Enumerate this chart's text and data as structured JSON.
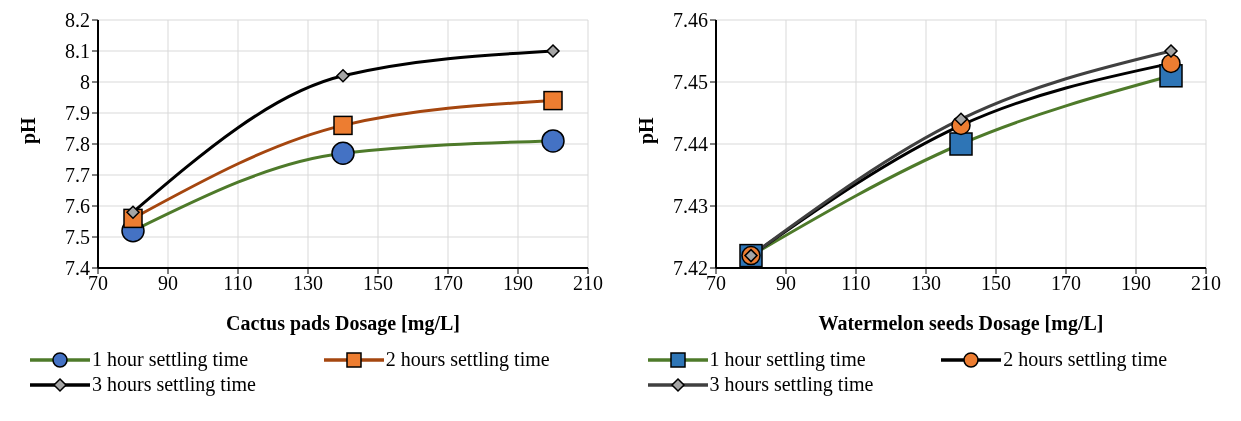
{
  "chart_data": [
    {
      "type": "line",
      "xlabel": "Cactus pads Dosage [mg/L]",
      "ylabel": "pH",
      "x": [
        80,
        140,
        200
      ],
      "xlim": [
        70,
        210
      ],
      "xticks": [
        70,
        90,
        110,
        130,
        150,
        170,
        190,
        210
      ],
      "ylim": [
        7.4,
        8.2
      ],
      "yticks": [
        7.4,
        7.5,
        7.6,
        7.7,
        7.8,
        7.9,
        8,
        8.1,
        8.2
      ],
      "grid": true,
      "legend": "bottom",
      "series": [
        {
          "name": "1 hour settling time",
          "color": "#4e7a2a",
          "colors": [
            "#4472c4",
            "#4472c4",
            "#4472c4"
          ],
          "marker": "circle",
          "values": [
            7.52,
            7.77,
            7.81
          ]
        },
        {
          "name": "2 hours settling time",
          "color": "#a5460f",
          "colors": [
            "#ed7d31",
            "#ed7d31",
            "#ed7d31"
          ],
          "marker": "square",
          "values": [
            7.56,
            7.86,
            7.94
          ]
        },
        {
          "name": "3 hours settling time",
          "color": "#000000",
          "colors": [
            "#a5a5a5",
            "#a5a5a5",
            "#a5a5a5"
          ],
          "marker": "diamond",
          "values": [
            7.58,
            8.02,
            8.1
          ]
        }
      ]
    },
    {
      "type": "line",
      "xlabel": "Watermelon seeds Dosage [mg/L]",
      "ylabel": "pH",
      "x": [
        80,
        140,
        200
      ],
      "xlim": [
        70,
        210
      ],
      "xticks": [
        70,
        90,
        110,
        130,
        150,
        170,
        190,
        210
      ],
      "ylim": [
        7.42,
        7.46
      ],
      "yticks": [
        7.42,
        7.43,
        7.44,
        7.45,
        7.46
      ],
      "grid": true,
      "legend": "bottom",
      "series": [
        {
          "name": "1 hour settling time",
          "color": "#4e7a2a",
          "colors": [
            "#2e75b6",
            "#2e75b6",
            "#2e75b6"
          ],
          "marker": "square",
          "values": [
            7.422,
            7.44,
            7.451
          ]
        },
        {
          "name": "2 hours settling time",
          "color": "#000000",
          "colors": [
            "#ed7d31",
            "#ed7d31",
            "#ed7d31"
          ],
          "marker": "circle",
          "values": [
            7.422,
            7.443,
            7.453
          ]
        },
        {
          "name": "3 hours settling time",
          "color": "#404040",
          "colors": [
            "#a5a5a5",
            "#a5a5a5",
            "#a5a5a5"
          ],
          "marker": "diamond",
          "values": [
            7.422,
            7.444,
            7.455
          ]
        }
      ]
    }
  ]
}
